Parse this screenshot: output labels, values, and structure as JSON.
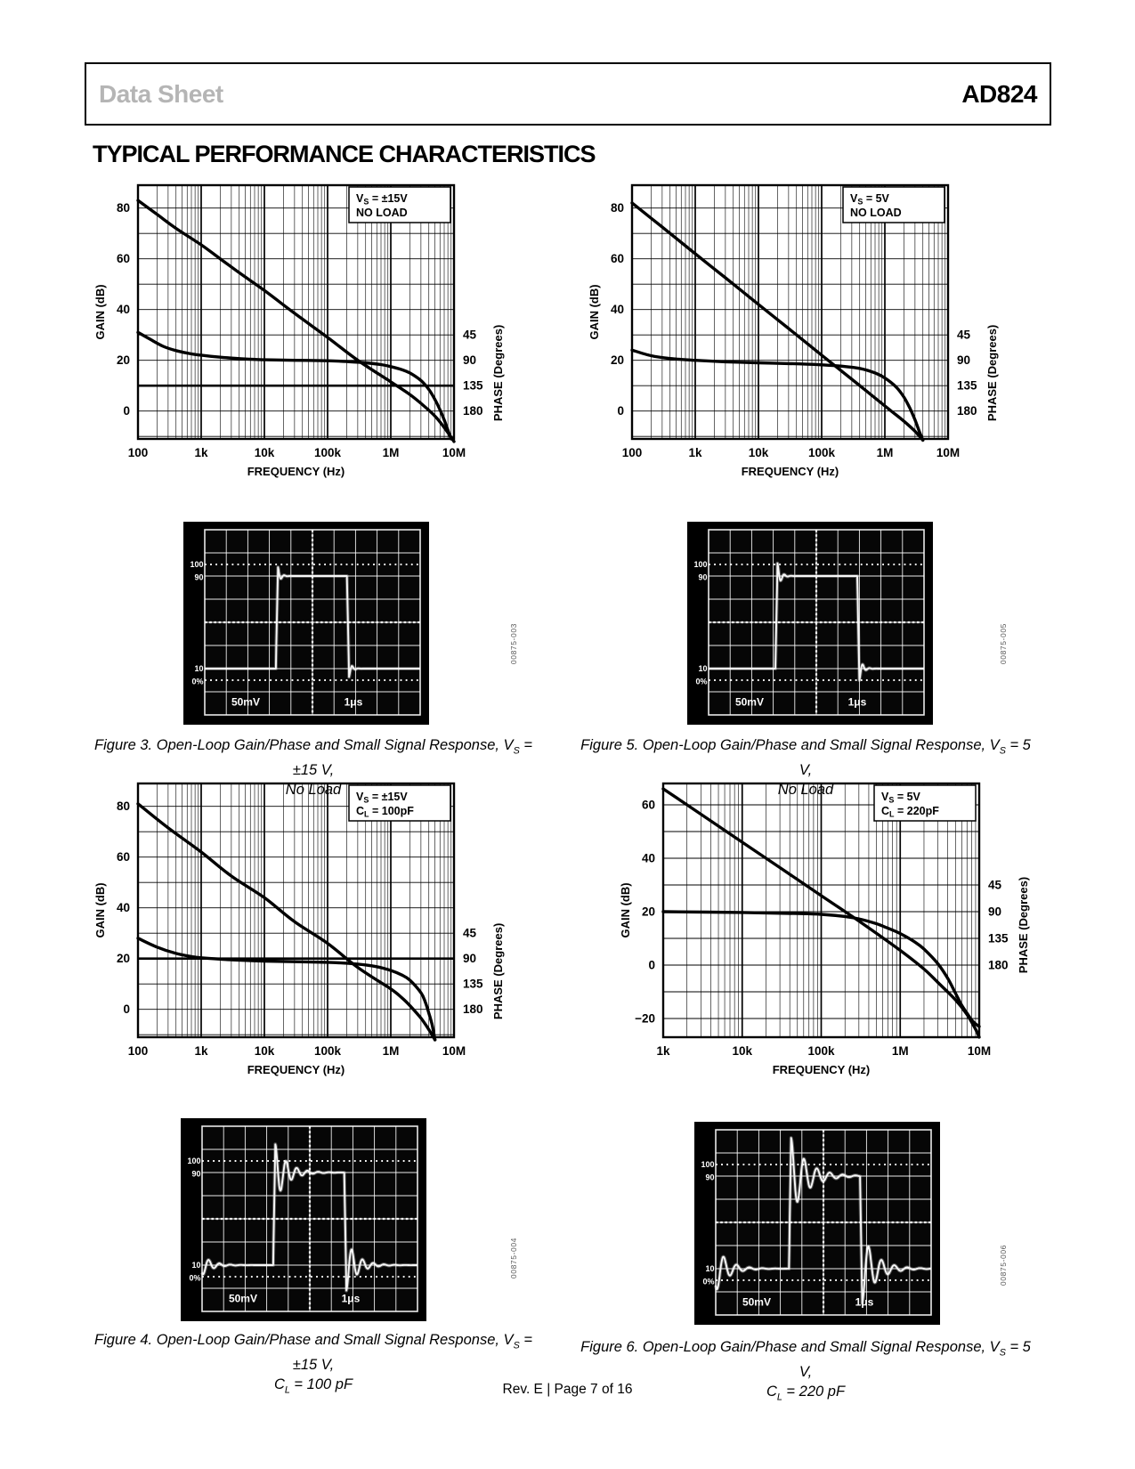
{
  "header": {
    "doc_type": "Data Sheet",
    "part_number": "AD824"
  },
  "section_title": "TYPICAL PERFORMANCE CHARACTERISTICS",
  "footer": {
    "revision": "Rev. E | Page 7 of 16"
  },
  "figures": [
    {
      "line1": "Figure 3. Open-Loop Gain/Phase and Small Signal Response, V_S_ = ±15 V,",
      "line2": "No Load",
      "watermark": "00875-003"
    },
    {
      "line1": "Figure 5. Open-Loop Gain/Phase and Small Signal Response, V_S_ = 5 V,",
      "line2": "No Load",
      "watermark": "00875-005"
    },
    {
      "line1": "Figure 4. Open-Loop Gain/Phase and Small Signal Response, V_S_ = ±15 V,",
      "line2": "C_L_ = 100 pF",
      "watermark": "00875-004"
    },
    {
      "line1": "Figure 6. Open-Loop Gain/Phase and Small Signal Response, V_S_ = 5 V,",
      "line2": "C_L_ = 220 pF",
      "watermark": "00875-006"
    }
  ],
  "chart_data": [
    {
      "id": "figure3-bode",
      "type": "line",
      "annotation_lines": [
        "V_S_ = ±15V",
        "NO LOAD"
      ],
      "xlabel": "FREQUENCY (Hz)",
      "ylabel_left": "GAIN (dB)",
      "ylabel_right": "PHASE (Degrees)",
      "x_ticks": [
        "100",
        "1k",
        "10k",
        "100k",
        "1M",
        "10M"
      ],
      "x_min": 100,
      "x_max": 10000000,
      "y_min": -11,
      "y_max": 89,
      "y_grid_step": 10,
      "y_ticks": [
        {
          "label": "80",
          "value": 80
        },
        {
          "label": "60",
          "value": 60
        },
        {
          "label": "40",
          "value": 40
        },
        {
          "label": "20",
          "value": 20
        },
        {
          "label": "0",
          "value": 0
        }
      ],
      "phase_ticks": [
        {
          "label": "45",
          "gain_db_pos": 30
        },
        {
          "label": "90",
          "gain_db_pos": 20
        },
        {
          "label": "135",
          "gain_db_pos": 10
        },
        {
          "label": "180",
          "gain_db_pos": 0
        }
      ],
      "ref_line_db": 10,
      "series": [
        {
          "name": "open-loop gain",
          "points": [
            [
              100,
              83
            ],
            [
              200,
              77.5
            ],
            [
              400,
              72
            ],
            [
              1000,
              65.5
            ],
            [
              2000,
              60
            ],
            [
              4000,
              54.5
            ],
            [
              10000,
              47.5
            ],
            [
              30000,
              38.5
            ],
            [
              100000,
              29
            ],
            [
              300000,
              20
            ],
            [
              1000000,
              11.5
            ],
            [
              2000000,
              6.5
            ],
            [
              3000000,
              3
            ],
            [
              5000000,
              -2
            ],
            [
              7000000,
              -6.5
            ],
            [
              10000000,
              -12
            ]
          ]
        },
        {
          "name": "phase",
          "points": [
            [
              100,
              31
            ],
            [
              150,
              28.5
            ],
            [
              250,
              25.5
            ],
            [
              400,
              23.8
            ],
            [
              700,
              22.5
            ],
            [
              1000,
              22
            ],
            [
              2000,
              21.2
            ],
            [
              5000,
              20.5
            ],
            [
              10000,
              20.2
            ],
            [
              30000,
              20
            ],
            [
              100000,
              19.8
            ],
            [
              200000,
              19.5
            ],
            [
              400000,
              19
            ],
            [
              700000,
              18.3
            ],
            [
              1000000,
              17.5
            ],
            [
              1500000,
              16.3
            ],
            [
              2000000,
              15
            ],
            [
              3000000,
              12
            ],
            [
              4000000,
              8.5
            ],
            [
              5000000,
              4.5
            ],
            [
              6000000,
              0.5
            ],
            [
              7000000,
              -3.5
            ],
            [
              8000000,
              -7.5
            ],
            [
              9000000,
              -11
            ]
          ]
        }
      ]
    },
    {
      "id": "figure5-bode",
      "type": "line",
      "annotation_lines": [
        "V_S_ = 5V",
        "NO LOAD"
      ],
      "xlabel": "FREQUENCY (Hz)",
      "ylabel_left": "GAIN (dB)",
      "ylabel_right": "PHASE (Degrees)",
      "x_ticks": [
        "100",
        "1k",
        "10k",
        "100k",
        "1M",
        "10M"
      ],
      "x_min": 100,
      "x_max": 10000000,
      "y_min": -11,
      "y_max": 89,
      "y_grid_step": 10,
      "y_ticks": [
        {
          "label": "80",
          "value": 80
        },
        {
          "label": "60",
          "value": 60
        },
        {
          "label": "40",
          "value": 40
        },
        {
          "label": "20",
          "value": 20
        },
        {
          "label": "0",
          "value": 0
        }
      ],
      "phase_ticks": [
        {
          "label": "45",
          "gain_db_pos": 30
        },
        {
          "label": "90",
          "gain_db_pos": 20
        },
        {
          "label": "135",
          "gain_db_pos": 10
        },
        {
          "label": "180",
          "gain_db_pos": 0
        }
      ],
      "ref_line_db": null,
      "series": [
        {
          "name": "open-loop gain",
          "points": [
            [
              100,
              82
            ],
            [
              300,
              72.5
            ],
            [
              1000,
              62
            ],
            [
              3000,
              52.5
            ],
            [
              10000,
              42
            ],
            [
              30000,
              32.5
            ],
            [
              100000,
              22
            ],
            [
              300000,
              12.5
            ],
            [
              1000000,
              2
            ],
            [
              1500000,
              -1.5
            ],
            [
              2000000,
              -4
            ],
            [
              3000000,
              -8
            ],
            [
              4000000,
              -11.5
            ]
          ]
        },
        {
          "name": "phase",
          "points": [
            [
              100,
              24
            ],
            [
              200,
              21.8
            ],
            [
              400,
              20.7
            ],
            [
              1000,
              20
            ],
            [
              3000,
              19.4
            ],
            [
              10000,
              19
            ],
            [
              30000,
              18.7
            ],
            [
              100000,
              18.2
            ],
            [
              200000,
              17.7
            ],
            [
              400000,
              16.8
            ],
            [
              700000,
              15
            ],
            [
              1000000,
              13
            ],
            [
              1500000,
              9.5
            ],
            [
              2000000,
              5.5
            ],
            [
              2500000,
              1
            ],
            [
              3000000,
              -3.5
            ],
            [
              3500000,
              -8
            ],
            [
              4000000,
              -11.5
            ]
          ]
        }
      ]
    },
    {
      "id": "figure4-bode",
      "type": "line",
      "annotation_lines": [
        "V_S_ = ±15V",
        "C_L_ = 100pF"
      ],
      "xlabel": "FREQUENCY (Hz)",
      "ylabel_left": "GAIN (dB)",
      "ylabel_right": "PHASE (Degrees)",
      "x_ticks": [
        "100",
        "1k",
        "10k",
        "100k",
        "1M",
        "10M"
      ],
      "x_min": 100,
      "x_max": 10000000,
      "y_min": -11,
      "y_max": 89,
      "y_grid_step": 10,
      "y_ticks": [
        {
          "label": "80",
          "value": 80
        },
        {
          "label": "60",
          "value": 60
        },
        {
          "label": "40",
          "value": 40
        },
        {
          "label": "20",
          "value": 20
        },
        {
          "label": "0",
          "value": 0
        }
      ],
      "phase_ticks": [
        {
          "label": "45",
          "gain_db_pos": 30
        },
        {
          "label": "90",
          "gain_db_pos": 20
        },
        {
          "label": "135",
          "gain_db_pos": 10
        },
        {
          "label": "180",
          "gain_db_pos": 0
        }
      ],
      "ref_line_db": 20,
      "series": [
        {
          "name": "open-loop gain",
          "points": [
            [
              100,
              81
            ],
            [
              300,
              71.5
            ],
            [
              1000,
              62
            ],
            [
              3000,
              52.5
            ],
            [
              10000,
              44
            ],
            [
              30000,
              34.5
            ],
            [
              100000,
              26
            ],
            [
              300000,
              16.5
            ],
            [
              1000000,
              8
            ],
            [
              1500000,
              4.5
            ],
            [
              2000000,
              1.5
            ],
            [
              3000000,
              -3.5
            ],
            [
              4000000,
              -8
            ],
            [
              5000000,
              -12
            ]
          ]
        },
        {
          "name": "phase",
          "points": [
            [
              100,
              28
            ],
            [
              200,
              24.5
            ],
            [
              400,
              22
            ],
            [
              700,
              20.8
            ],
            [
              1000,
              20.3
            ],
            [
              3000,
              19.5
            ],
            [
              10000,
              19
            ],
            [
              100000,
              18.5
            ],
            [
              300000,
              17.8
            ],
            [
              600000,
              16.8
            ],
            [
              1000000,
              15.3
            ],
            [
              1500000,
              13.5
            ],
            [
              2000000,
              11.5
            ],
            [
              3000000,
              6.5
            ],
            [
              3500000,
              3
            ],
            [
              4000000,
              -1.5
            ],
            [
              4500000,
              -6
            ],
            [
              5000000,
              -12
            ]
          ]
        }
      ]
    },
    {
      "id": "figure6-bode",
      "type": "line",
      "annotation_lines": [
        "V_S_ = 5V",
        "C_L_ = 220pF"
      ],
      "xlabel": "FREQUENCY (Hz)",
      "ylabel_left": "GAIN (dB)",
      "ylabel_right": "PHASE (Degrees)",
      "x_ticks": [
        "1k",
        "10k",
        "100k",
        "1M",
        "10M"
      ],
      "x_min": 1000,
      "x_max": 10000000,
      "y_min": -27,
      "y_max": 68,
      "y_grid_step": 10,
      "y_ticks": [
        {
          "label": "60",
          "value": 60
        },
        {
          "label": "40",
          "value": 40
        },
        {
          "label": "20",
          "value": 20
        },
        {
          "label": "0",
          "value": 0
        },
        {
          "label": "−20",
          "value": -20
        }
      ],
      "phase_ticks": [
        {
          "label": "45",
          "gain_db_pos": 30
        },
        {
          "label": "90",
          "gain_db_pos": 20
        },
        {
          "label": "135",
          "gain_db_pos": 10
        },
        {
          "label": "180",
          "gain_db_pos": 0
        }
      ],
      "ref_line_db": null,
      "series": [
        {
          "name": "open-loop gain",
          "points": [
            [
              1000,
              66
            ],
            [
              3000,
              56.5
            ],
            [
              10000,
              46
            ],
            [
              30000,
              36.5
            ],
            [
              100000,
              26
            ],
            [
              300000,
              16.5
            ],
            [
              1000000,
              5.5
            ],
            [
              2000000,
              -1.5
            ],
            [
              3000000,
              -6.5
            ],
            [
              5000000,
              -13
            ],
            [
              7000000,
              -18.5
            ],
            [
              9000000,
              -24
            ],
            [
              10000000,
              -27
            ]
          ]
        },
        {
          "name": "phase",
          "points": [
            [
              1000,
              20
            ],
            [
              10000,
              19.7
            ],
            [
              50000,
              19.3
            ],
            [
              100000,
              19
            ],
            [
              200000,
              18.2
            ],
            [
              300000,
              17.3
            ],
            [
              500000,
              15.5
            ],
            [
              700000,
              13.8
            ],
            [
              1000000,
              11.8
            ],
            [
              1500000,
              8.8
            ],
            [
              2000000,
              6
            ],
            [
              3000000,
              0.5
            ],
            [
              4000000,
              -5
            ],
            [
              5000000,
              -10.5
            ],
            [
              6000000,
              -15
            ],
            [
              7000000,
              -18
            ],
            [
              8000000,
              -20.5
            ],
            [
              9000000,
              -22
            ],
            [
              10000000,
              -23
            ]
          ]
        }
      ]
    }
  ],
  "scopes": [
    {
      "id": "figure3-scope",
      "graticule_labels": {
        "top_pct": "100",
        "high": "90",
        "low": "10",
        "bottom_pct": "0%"
      },
      "vertical_scale": "50mV",
      "time_scale": "1μs",
      "trace": {
        "rise_div": 3.3,
        "fall_div": 6.6,
        "high_div": 2.0,
        "low_div": 6.0,
        "overshoot_div": 0.38,
        "overshoot_decay": 0.12,
        "undershoot_div": 0.36,
        "undershoot_decay": 0.12,
        "ring_period_div": 0.3,
        "start_ring_div": 0,
        "start_ring_decay": 0.4
      }
    },
    {
      "id": "figure5-scope",
      "graticule_labels": {
        "top_pct": "100",
        "high": "90",
        "low": "10",
        "bottom_pct": "0%"
      },
      "vertical_scale": "50mV",
      "time_scale": "1μs",
      "trace": {
        "rise_div": 3.1,
        "fall_div": 6.9,
        "high_div": 2.0,
        "low_div": 6.0,
        "overshoot_div": 0.55,
        "overshoot_decay": 0.15,
        "undershoot_div": 0.5,
        "undershoot_decay": 0.15,
        "ring_period_div": 0.32,
        "start_ring_div": 0,
        "start_ring_decay": 0.4
      }
    },
    {
      "id": "figure4-scope",
      "graticule_labels": {
        "top_pct": "100",
        "high": "90",
        "low": "10",
        "bottom_pct": "0%"
      },
      "vertical_scale": "50mV",
      "time_scale": "1μs",
      "trace": {
        "rise_div": 3.3,
        "fall_div": 6.6,
        "high_div": 2.0,
        "low_div": 6.0,
        "overshoot_div": 1.22,
        "overshoot_decay": 0.55,
        "undershoot_div": 1.1,
        "undershoot_decay": 0.5,
        "ring_period_div": 0.5,
        "start_ring_div": 0.45,
        "start_ring_decay": 0.45
      }
    },
    {
      "id": "figure6-scope",
      "graticule_labels": {
        "top_pct": "100",
        "high": "90",
        "low": "10",
        "bottom_pct": "0%"
      },
      "vertical_scale": "50mV",
      "time_scale": "1μs",
      "trace": {
        "rise_div": 3.4,
        "fall_div": 6.7,
        "high_div": 2.0,
        "low_div": 6.0,
        "overshoot_div": 1.65,
        "overshoot_decay": 0.75,
        "undershoot_div": 1.5,
        "undershoot_decay": 0.65,
        "ring_period_div": 0.6,
        "start_ring_div": 1.0,
        "start_ring_decay": 0.55
      }
    }
  ]
}
